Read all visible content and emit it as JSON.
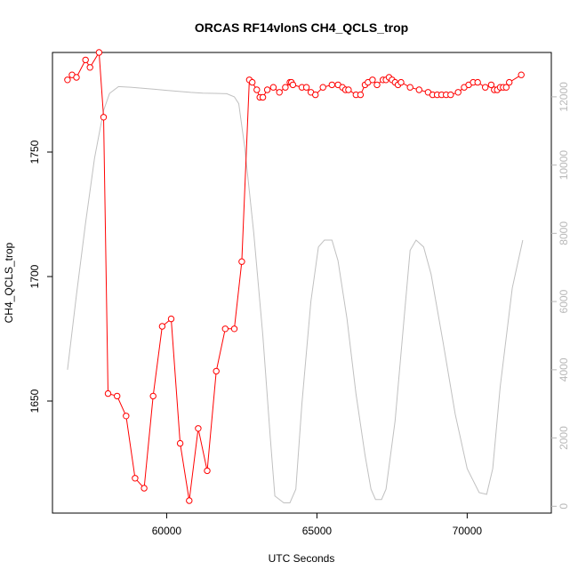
{
  "chart_data": {
    "type": "line",
    "title": "ORCAS RF14vlonS CH4_QCLS_trop",
    "xlabel": "UTC Seconds",
    "ylabel": "CH4_QCLS_trop",
    "xlim": [
      56200,
      72800
    ],
    "ylim": [
      1605,
      1790
    ],
    "y2lim": [
      -200,
      13300
    ],
    "x_ticks": [
      60000,
      65000,
      70000
    ],
    "y_ticks": [
      1650,
      1700,
      1750
    ],
    "y2_ticks": [
      0,
      2000,
      4000,
      6000,
      8000,
      10000,
      12000
    ],
    "series": [
      {
        "role": "primary",
        "color": "#ff0000",
        "style": "line+circles",
        "x": [
          56700,
          56850,
          57000,
          57300,
          57450,
          57750,
          57900,
          58050,
          58350,
          58650,
          58950,
          59250,
          59550,
          59850,
          60150,
          60450,
          60750,
          61050,
          61350,
          61650,
          61950,
          62250,
          62500,
          62750,
          62850,
          63000,
          63100,
          63200,
          63350,
          63550,
          63750,
          63950,
          64100,
          64150,
          64200,
          64500,
          64650,
          64800,
          64950,
          65200,
          65500,
          65700,
          65850,
          65950,
          66050,
          66300,
          66450,
          66600,
          66700,
          66850,
          67000,
          67200,
          67300,
          67400,
          67500,
          67600,
          67700,
          67800,
          68100,
          68400,
          68700,
          68850,
          69000,
          69150,
          69300,
          69450,
          69700,
          69900,
          70050,
          70200,
          70350,
          70600,
          70800,
          70900,
          71000,
          71100,
          71200,
          71300,
          71400,
          71800
        ],
        "y": [
          1779,
          1781,
          1780,
          1787,
          1784,
          1790,
          1764,
          1653,
          1652,
          1644,
          1619,
          1615,
          1652,
          1680,
          1683,
          1633,
          1610,
          1639,
          1622,
          1662,
          1679,
          1679,
          1706,
          1779,
          1778,
          1775,
          1772,
          1772,
          1775,
          1776,
          1774,
          1776,
          1778,
          1778,
          1777,
          1776,
          1776,
          1774,
          1773,
          1776,
          1777,
          1777,
          1776,
          1775,
          1775,
          1773,
          1773,
          1777,
          1778,
          1779,
          1777,
          1779,
          1779,
          1780,
          1779,
          1778,
          1777,
          1778,
          1776,
          1775,
          1774,
          1773,
          1773,
          1773,
          1773,
          1773,
          1774,
          1776,
          1777,
          1778,
          1778,
          1776,
          1777,
          1775,
          1775,
          1776,
          1776,
          1776,
          1778,
          1781
        ]
      },
      {
        "role": "secondary",
        "color": "#c0c0c0",
        "style": "line",
        "x": [
          56700,
          57000,
          57300,
          57600,
          57900,
          58100,
          58400,
          58800,
          59200,
          59600,
          60000,
          60400,
          60800,
          61200,
          61600,
          62000,
          62250,
          62400,
          62600,
          62900,
          63200,
          63450,
          63600,
          63900,
          64100,
          64300,
          64500,
          64800,
          65050,
          65250,
          65500,
          65700,
          66000,
          66300,
          66600,
          66800,
          66950,
          67150,
          67300,
          67600,
          67900,
          68100,
          68300,
          68550,
          68800,
          69200,
          69600,
          70000,
          70400,
          70650,
          70850,
          71100,
          71500,
          71850
        ],
        "y": [
          4000,
          6200,
          8300,
          10200,
          11600,
          12100,
          12300,
          12280,
          12250,
          12220,
          12190,
          12160,
          12130,
          12110,
          12100,
          12090,
          12000,
          11800,
          10500,
          8000,
          5000,
          2000,
          300,
          100,
          100,
          500,
          3000,
          6000,
          7600,
          7800,
          7800,
          7200,
          5500,
          3300,
          1500,
          500,
          200,
          200,
          500,
          2500,
          5500,
          7500,
          7800,
          7600,
          6800,
          4800,
          2700,
          1100,
          400,
          350,
          1100,
          3500,
          6400,
          7800
        ]
      }
    ]
  }
}
